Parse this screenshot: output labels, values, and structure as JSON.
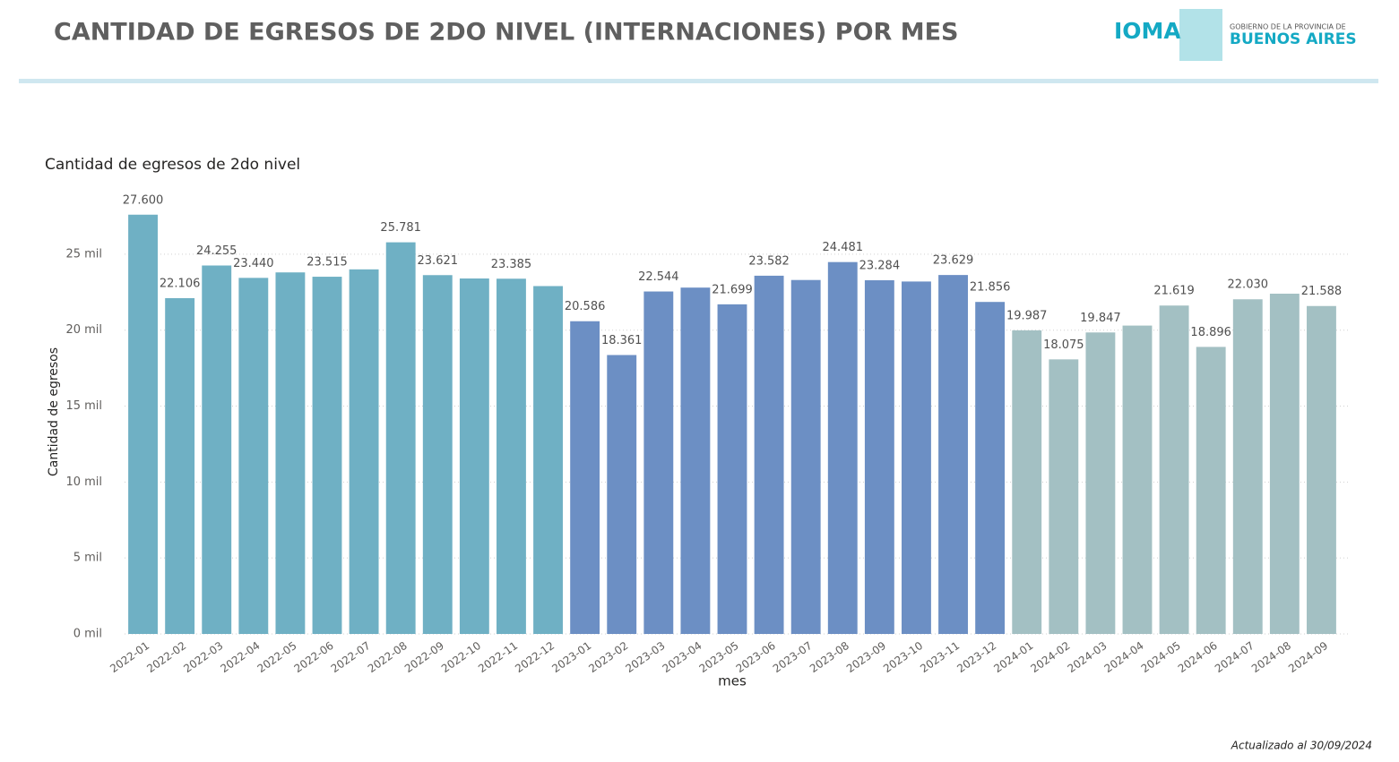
{
  "header": {
    "title": "CANTIDAD DE EGRESOS DE 2DO NIVEL (INTERNACIONES) POR MES",
    "logo_left": "IOMA",
    "logo_right_top": "GOBIERNO DE LA PROVINCIA DE",
    "logo_right_bottom": "BUENOS AIRES"
  },
  "footer": "Actualizado al 30/09/2024",
  "chart_data": {
    "type": "bar",
    "title": "Cantidad de egresos de 2do nivel",
    "y_label": "Cantidad de egresos",
    "x_label": "mes",
    "categories": [
      "2022-01",
      "2022-02",
      "2022-03",
      "2022-04",
      "2022-05",
      "2022-06",
      "2022-07",
      "2022-08",
      "2022-09",
      "2022-10",
      "2022-11",
      "2022-12",
      "2023-01",
      "2023-02",
      "2023-03",
      "2023-04",
      "2023-05",
      "2023-06",
      "2023-07",
      "2023-08",
      "2023-09",
      "2023-10",
      "2023-11",
      "2023-12",
      "2024-01",
      "2024-02",
      "2024-03",
      "2024-04",
      "2024-05",
      "2024-06",
      "2024-07",
      "2024-08",
      "2024-09"
    ],
    "values": [
      27600,
      22106,
      24255,
      23440,
      23800,
      23515,
      24000,
      25781,
      23621,
      23400,
      23385,
      22900,
      20586,
      18361,
      22544,
      22800,
      21699,
      23582,
      23300,
      24481,
      23284,
      23200,
      23629,
      21856,
      19987,
      18075,
      19847,
      20300,
      21619,
      18896,
      22030,
      22400,
      21588
    ],
    "value_labels": [
      "27.600",
      "22.106",
      "24.255",
      "23.440",
      null,
      "23.515",
      null,
      "25.781",
      "23.621",
      null,
      "23.385",
      null,
      "20.586",
      "18.361",
      "22.544",
      null,
      "21.699",
      "23.582",
      null,
      "24.481",
      "23.284",
      null,
      "23.629",
      "21.856",
      "19.987",
      "18.075",
      "19.847",
      null,
      "21.619",
      "18.896",
      "22.030",
      null,
      "21.588"
    ],
    "colors": [
      "#6fb0c4",
      "#6fb0c4",
      "#6fb0c4",
      "#6fb0c4",
      "#6fb0c4",
      "#6fb0c4",
      "#6fb0c4",
      "#6fb0c4",
      "#6fb0c4",
      "#6fb0c4",
      "#6fb0c4",
      "#6fb0c4",
      "#6c8fc4",
      "#6c8fc4",
      "#6c8fc4",
      "#6c8fc4",
      "#6c8fc4",
      "#6c8fc4",
      "#6c8fc4",
      "#6c8fc4",
      "#6c8fc4",
      "#6c8fc4",
      "#6c8fc4",
      "#6c8fc4",
      "#a3c0c3",
      "#a3c0c3",
      "#a3c0c3",
      "#a3c0c3",
      "#a3c0c3",
      "#a3c0c3",
      "#a3c0c3",
      "#a3c0c3",
      "#a3c0c3"
    ],
    "ylim": [
      0,
      29000
    ],
    "yticks": [
      {
        "value": 0,
        "label": "0 mil"
      },
      {
        "value": 5000,
        "label": "5 mil"
      },
      {
        "value": 10000,
        "label": "10 mil"
      },
      {
        "value": 15000,
        "label": "15 mil"
      },
      {
        "value": 20000,
        "label": "20 mil"
      },
      {
        "value": 25000,
        "label": "25 mil"
      }
    ],
    "grid": true
  }
}
